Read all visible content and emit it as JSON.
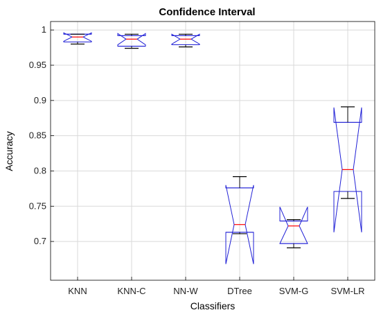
{
  "chart_data": {
    "type": "box",
    "title": "Confidence Interval",
    "xlabel": "Classifiers",
    "ylabel": "Accuracy",
    "ylim": [
      0.645,
      1.012
    ],
    "yticks": [
      "0.7",
      "0.75",
      "0.8",
      "0.85",
      "0.9",
      "0.95",
      "1"
    ],
    "grid": true,
    "notched": true,
    "colors": {
      "box": "#1f1fd6",
      "median": "#ff0000",
      "whisker": "#000000",
      "grid": "#d9d9d9",
      "axis": "#000000"
    },
    "categories": [
      "KNN",
      "KNN-C",
      "NN-W",
      "DTree",
      "SVM-G",
      "SVM-LR"
    ],
    "boxes": [
      {
        "label": "KNN",
        "whisker_low": 0.98,
        "q1": 0.983,
        "median": 0.99,
        "q3": 0.994,
        "whisker_high": 0.994,
        "notch_low": 0.984,
        "notch_high": 0.996
      },
      {
        "label": "KNN-C",
        "whisker_low": 0.974,
        "q1": 0.977,
        "median": 0.987,
        "q3": 0.992,
        "whisker_high": 0.994,
        "notch_low": 0.979,
        "notch_high": 0.995
      },
      {
        "label": "NN-W",
        "whisker_low": 0.976,
        "q1": 0.979,
        "median": 0.987,
        "q3": 0.992,
        "whisker_high": 0.994,
        "notch_low": 0.98,
        "notch_high": 0.994
      },
      {
        "label": "DTree",
        "whisker_low": 0.711,
        "q1": 0.713,
        "median": 0.724,
        "q3": 0.776,
        "whisker_high": 0.792,
        "notch_low": 0.668,
        "notch_high": 0.78
      },
      {
        "label": "SVM-G",
        "whisker_low": 0.691,
        "q1": 0.697,
        "median": 0.722,
        "q3": 0.729,
        "whisker_high": 0.731,
        "notch_low": 0.697,
        "notch_high": 0.749
      },
      {
        "label": "SVM-LR",
        "whisker_low": 0.761,
        "q1": 0.771,
        "median": 0.802,
        "q3": 0.869,
        "whisker_high": 0.891,
        "notch_low": 0.713,
        "notch_high": 0.89
      }
    ]
  }
}
